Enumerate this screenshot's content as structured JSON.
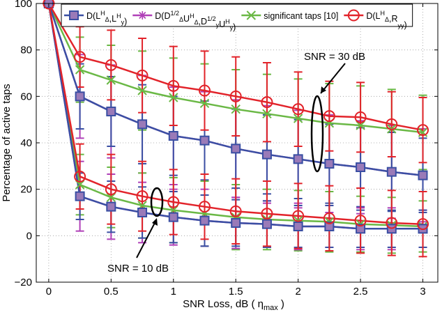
{
  "chart_data": {
    "type": "line",
    "xlabel": "SNR Loss, dB ( η",
    "xlabel_sub": "max",
    "xlabel_end": " )",
    "ylabel": "Percentage of active taps",
    "xlim": [
      -0.1,
      3.12
    ],
    "ylim": [
      -20,
      100
    ],
    "xticks": [
      0,
      0.5,
      1,
      1.5,
      2,
      2.5,
      3
    ],
    "xtick_labels": [
      "0",
      "0.5",
      "1",
      "1.5",
      "2",
      "2.5",
      "3"
    ],
    "yticks": [
      -20,
      0,
      20,
      40,
      60,
      80,
      100
    ],
    "ytick_labels": [
      "−20",
      "0",
      "20",
      "40",
      "60",
      "80",
      "100"
    ],
    "grid": true,
    "legend_position": "top",
    "x": [
      0,
      0.25,
      0.5,
      0.75,
      1,
      1.25,
      1.5,
      1.75,
      2,
      2.25,
      2.5,
      2.75,
      3
    ],
    "series": [
      {
        "name": "D(L_Δ^H, L_y^H)",
        "group": "SNR = 30 dB",
        "color": "#3a4fa3",
        "marker": "square",
        "values": [
          100,
          60,
          53.5,
          48,
          43,
          41,
          37.5,
          35,
          33,
          31,
          29.5,
          27.5,
          26
        ],
        "err": [
          0,
          14,
          15,
          17,
          17,
          17,
          17,
          17,
          17,
          17,
          17,
          17,
          16
        ]
      },
      {
        "name": "D(D_Δ^{1/2} U_Δ^H, D_y^{1/2} U_y^H)",
        "group": "SNR = 30 dB",
        "color": "#b040b8",
        "marker": "star",
        "values": [
          100,
          60,
          53.5,
          48,
          43,
          41,
          37.5,
          35,
          33,
          31,
          29.5,
          27.5,
          26
        ],
        "err": [
          0,
          18,
          20,
          21,
          21,
          21,
          21,
          21,
          21,
          21,
          20,
          20,
          20
        ]
      },
      {
        "name": "significant taps [10]",
        "group": "SNR = 30 dB",
        "color": "#6ab845",
        "marker": "x",
        "values": [
          100,
          71.5,
          67,
          62.5,
          59.5,
          57,
          54.5,
          52.5,
          50.5,
          48.5,
          47.5,
          46,
          44.5
        ],
        "err": [
          0,
          14,
          15,
          17,
          17,
          17,
          17,
          17,
          17,
          17,
          17,
          17,
          16
        ]
      },
      {
        "name": "D(L_Δ^H, R_yy)",
        "group": "SNR = 30 dB",
        "color": "#e2232a",
        "marker": "circle",
        "values": [
          100,
          77,
          73.5,
          69,
          64.5,
          62.5,
          60,
          57.5,
          54.5,
          51.5,
          51,
          48,
          45.5
        ],
        "err": [
          0,
          13,
          15,
          16,
          17,
          17,
          17,
          17,
          16,
          15,
          15,
          14,
          14
        ]
      },
      {
        "name": "D(L_Δ^H, L_y^H)",
        "group": "SNR = 10 dB",
        "color": "#3a4fa3",
        "marker": "square",
        "values": [
          100,
          17,
          12.5,
          10,
          8,
          6.5,
          5.5,
          5,
          4,
          4,
          3,
          3,
          3
        ],
        "err": [
          0,
          10,
          11,
          11,
          11,
          11,
          10,
          10,
          9,
          9,
          8,
          8,
          8
        ]
      },
      {
        "name": "D(D_Δ^{1/2} U_Δ^H, D_y^{1/2} U_y^H)",
        "group": "SNR = 10 dB",
        "color": "#b040b8",
        "marker": "star",
        "values": [
          100,
          17,
          12.5,
          10,
          8,
          6.5,
          5.5,
          5,
          4,
          4,
          3,
          3,
          3
        ],
        "err": [
          0,
          15,
          14,
          13,
          12,
          11,
          11,
          10,
          10,
          9,
          9,
          9,
          8
        ]
      },
      {
        "name": "significant taps [10]",
        "group": "SNR = 10 dB",
        "color": "#6ab845",
        "marker": "x",
        "values": [
          100,
          22,
          16.5,
          13,
          11,
          9.5,
          8,
          7,
          6.5,
          6,
          5,
          4.5,
          4
        ],
        "err": [
          0,
          13,
          13,
          14,
          14,
          14,
          14,
          13,
          13,
          13,
          12,
          12,
          11
        ]
      },
      {
        "name": "D(L_Δ^H, R_yy)",
        "group": "SNR = 10 dB",
        "color": "#e2232a",
        "marker": "circle",
        "values": [
          100,
          25.5,
          20,
          17,
          14.5,
          12.5,
          10.5,
          9.5,
          8.5,
          7.5,
          6.5,
          5.5,
          5
        ],
        "err": [
          0,
          14,
          15,
          15,
          14,
          14,
          14,
          14,
          14,
          14,
          14,
          14,
          14
        ]
      }
    ],
    "legend": [
      {
        "series_name": "D(L_Δ^H, L_y^H)",
        "color": "#3a4fa3",
        "marker": "square",
        "parts": [
          [
            "D(L",
            ""
          ],
          [
            "H",
            "sup"
          ],
          [
            "Δ",
            "sub"
          ],
          [
            ",L",
            ""
          ],
          [
            "H",
            "sup"
          ],
          [
            "y",
            "sub"
          ],
          [
            ")",
            ""
          ]
        ]
      },
      {
        "series_name": "D(D_Δ^{1/2} U_Δ^H, D_y^{1/2} U_y^H)",
        "color": "#b040b8",
        "marker": "star",
        "parts": [
          [
            "D(D",
            ""
          ],
          [
            "1/2",
            "sup"
          ],
          [
            "Δ",
            "sub"
          ],
          [
            "U",
            ""
          ],
          [
            "H",
            "sup"
          ],
          [
            "Δ",
            "sub"
          ],
          [
            ",D",
            ""
          ],
          [
            "1/2",
            "sup"
          ],
          [
            "y",
            "sub"
          ],
          [
            "U",
            ""
          ],
          [
            "H",
            "sup"
          ],
          [
            "y",
            "sub"
          ],
          [
            ")",
            ""
          ]
        ]
      },
      {
        "series_name": "significant taps [10]",
        "color": "#6ab845",
        "marker": "x",
        "parts": [
          [
            "significant taps [10]",
            ""
          ]
        ]
      },
      {
        "series_name": "D(L_Δ^H, R_yy)",
        "color": "#e2232a",
        "marker": "circle",
        "parts": [
          [
            "D(L",
            ""
          ],
          [
            "H",
            "sup"
          ],
          [
            "Δ",
            "sub"
          ],
          [
            ",R",
            ""
          ],
          [
            "yy",
            "sub"
          ],
          [
            ")",
            ""
          ]
        ]
      }
    ],
    "annotations": [
      {
        "text": "SNR = 30 dB"
      },
      {
        "text": "SNR = 10 dB"
      }
    ]
  }
}
